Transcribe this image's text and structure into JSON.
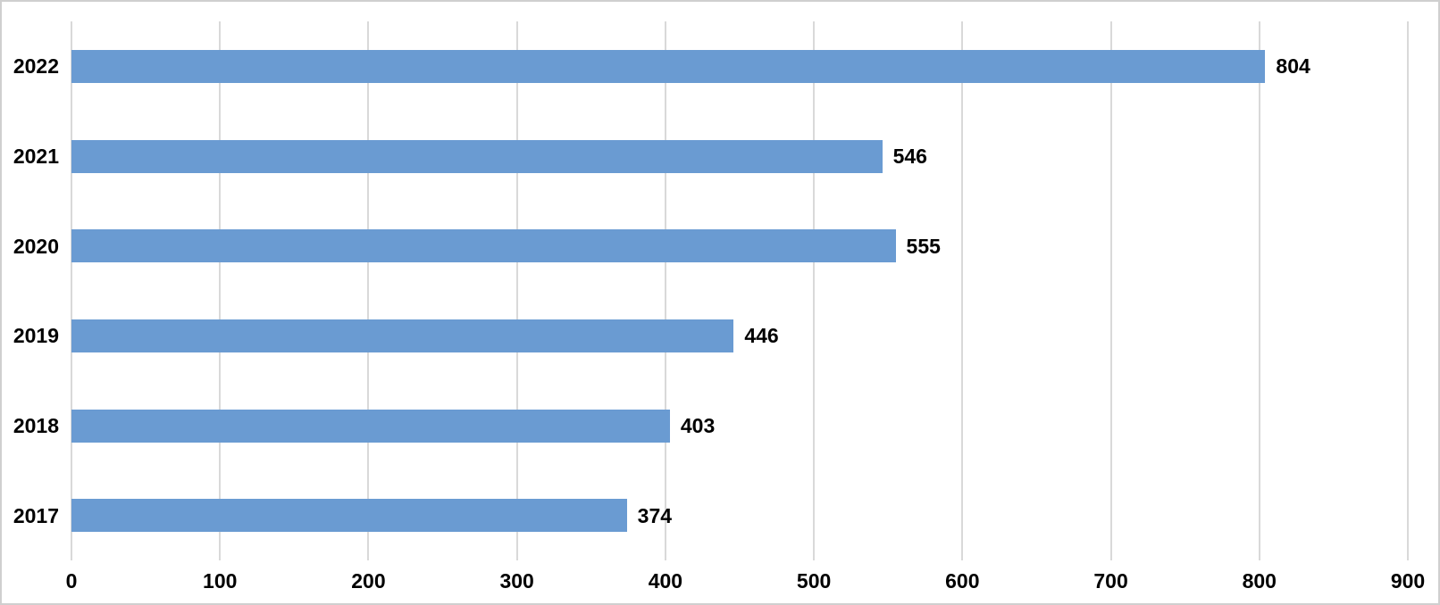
{
  "chart_data": {
    "type": "bar",
    "orientation": "horizontal",
    "title": "",
    "xlabel": "",
    "ylabel": "",
    "categories": [
      "2022",
      "2021",
      "2020",
      "2019",
      "2018",
      "2017"
    ],
    "values": [
      804,
      546,
      555,
      446,
      403,
      374
    ],
    "data_labels": [
      "804",
      "546",
      "555",
      "446",
      "403",
      "374"
    ],
    "x_ticks": [
      0,
      100,
      200,
      300,
      400,
      500,
      600,
      700,
      800,
      900
    ],
    "xlim": [
      0,
      900
    ],
    "grid": true,
    "legend": false,
    "bar_color": "#6a9bd2",
    "gridline_color": "#d9d9d9",
    "text_color": "#000000",
    "background_color": "#ffffff",
    "frame_border_color": "#cfcfcf"
  }
}
